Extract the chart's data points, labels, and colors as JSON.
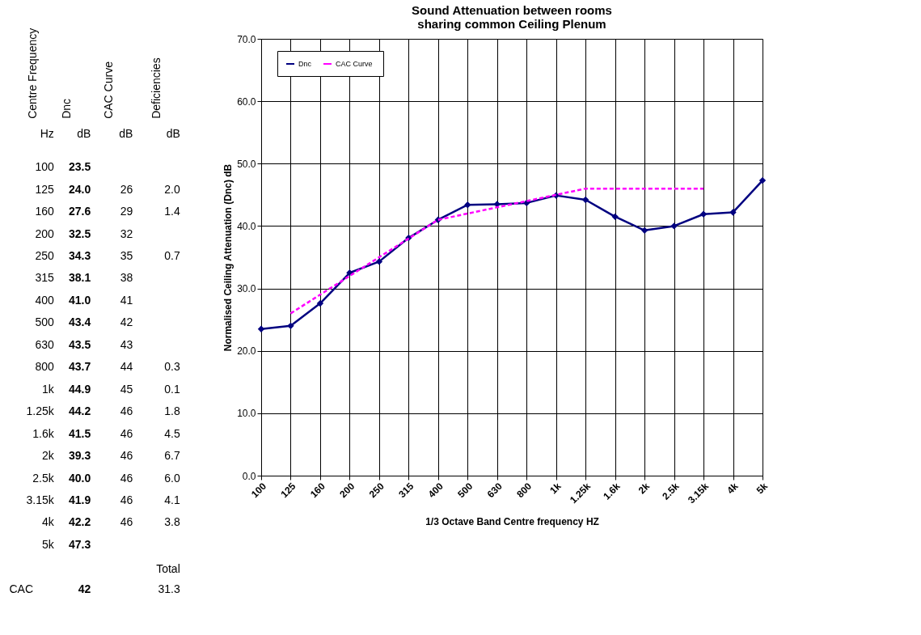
{
  "chart_data": [
    {
      "type": "other",
      "data_labels": true,
      "categories": [
        "100",
        "125",
        "160",
        "200",
        "250",
        "315",
        "400",
        "500",
        "630",
        "800",
        "1k",
        "1.25k",
        "1.6k",
        "2k",
        "2.5k",
        "3.15k",
        "4k",
        "5k"
      ],
      "series": [
        {
          "name": "Dnc",
          "values": [
            23.5,
            24.0,
            27.6,
            32.5,
            34.3,
            38.1,
            41.0,
            43.4,
            43.5,
            43.7,
            44.9,
            44.2,
            41.5,
            39.3,
            40.0,
            41.9,
            42.2,
            47.3
          ],
          "value_labels": [
            "23.5",
            "24.0",
            "27.6",
            "32.5",
            "34.3",
            "38.1",
            "41.0",
            "43.4",
            "43.5",
            "43.7",
            "44.9",
            "44.2",
            "41.5",
            "39.3",
            "40.0",
            "41.9",
            "42.2",
            "47.3"
          ]
        },
        {
          "name": "CAC  Curve",
          "values": [
            null,
            26,
            29,
            32,
            35,
            38,
            41,
            42,
            43,
            44,
            45,
            46,
            46,
            46,
            46,
            46,
            46,
            null
          ],
          "value_labels": [
            null,
            "26",
            "29",
            "32",
            "35",
            "38",
            "41",
            "42",
            "43",
            "44",
            "45",
            "46",
            "46",
            "46",
            "46",
            "46",
            "46",
            null
          ]
        },
        {
          "name": "Deficiencies",
          "values": [
            null,
            2.0,
            1.4,
            null,
            0.7,
            null,
            null,
            null,
            null,
            0.3,
            0.1,
            1.8,
            4.5,
            6.7,
            6.0,
            4.1,
            3.8,
            null
          ],
          "value_labels": [
            null,
            "2.0",
            "1.4",
            null,
            "0.7",
            null,
            null,
            null,
            null,
            "0.3",
            "0.1",
            "1.8",
            "4.5",
            "6.7",
            "6.0",
            "4.1",
            "3.8",
            null
          ]
        }
      ],
      "annotations": [
        "Centre Frequency",
        "Hz",
        "dB",
        "dB",
        "dB",
        "Total",
        "CAC",
        "42",
        "31.3"
      ]
    },
    {
      "type": "line",
      "title": "Sound Attenuation between rooms\nsharing common Ceiling Plenum",
      "xlabel": "1/3 Octave Band  Centre frequency HZ",
      "ylabel": "Normalised Ceiling  Attenuation  (Dnc)  dB",
      "categories": [
        "100",
        "125",
        "160",
        "200",
        "250",
        "315",
        "400",
        "500",
        "630",
        "800",
        "1k",
        "1.25k",
        "1.6k",
        "2k",
        "2.5k",
        "3.15k",
        "4k",
        "5k"
      ],
      "series": [
        {
          "name": "Dnc",
          "color": "#000080",
          "marker": "diamond",
          "line_style": "solid",
          "values": [
            23.5,
            24.0,
            27.6,
            32.5,
            34.3,
            38.1,
            41.0,
            43.4,
            43.5,
            43.7,
            44.9,
            44.2,
            41.5,
            39.3,
            40.0,
            41.9,
            42.2,
            47.3
          ]
        },
        {
          "name": "CAC  Curve",
          "color": "#ff00ff",
          "marker": "none",
          "line_style": "dashed",
          "values": [
            null,
            26,
            29,
            32,
            35,
            38,
            41,
            42,
            43,
            44,
            45,
            46,
            46,
            46,
            46,
            46,
            null,
            null
          ]
        }
      ],
      "ylim": [
        0,
        70
      ],
      "yticks": [
        {
          "value": 0,
          "label": "0.0"
        },
        {
          "value": 10,
          "label": "10.0"
        },
        {
          "value": 20,
          "label": "20.0"
        },
        {
          "value": 30,
          "label": "30.0"
        },
        {
          "value": 40,
          "label": "40.0"
        },
        {
          "value": 50,
          "label": "50.0"
        },
        {
          "value": 60,
          "label": "60.0"
        },
        {
          "value": 70,
          "label": "70.0"
        }
      ],
      "grid": true,
      "legend": "top left"
    }
  ]
}
